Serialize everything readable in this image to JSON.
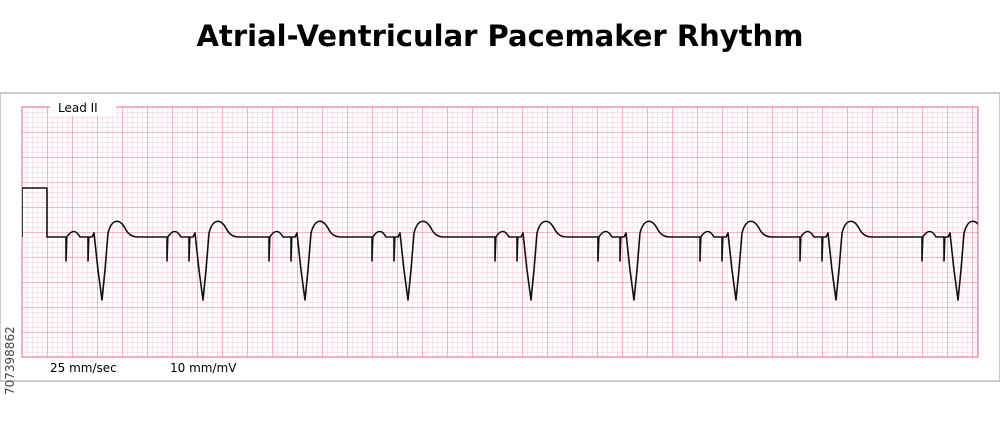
{
  "header": {
    "title": "Atrial-Ventricular Pacemaker Rhythm"
  },
  "strip": {
    "lead": "Lead II",
    "speed": "25 mm/sec",
    "gain": "10 mm/mV",
    "side_id": "707398862"
  }
}
